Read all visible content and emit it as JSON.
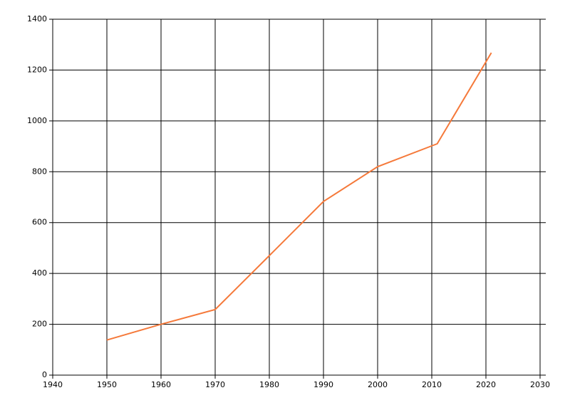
{
  "chart_data": {
    "type": "line",
    "x": [
      1950,
      1960,
      1970,
      1980,
      1990,
      2000,
      2011,
      2021
    ],
    "series": [
      {
        "color": "#f5793a",
        "values": [
          138,
          200,
          258,
          470,
          683,
          820,
          910,
          1268
        ]
      }
    ],
    "xlim": [
      1940,
      2030
    ],
    "xticks": [
      1940,
      1950,
      1960,
      1970,
      1980,
      1990,
      2000,
      2010,
      2020,
      2030
    ],
    "ylim": [
      0,
      1400
    ],
    "yticks": [
      0,
      200,
      400,
      600,
      800,
      1000,
      1200,
      1400
    ],
    "grid": true
  }
}
